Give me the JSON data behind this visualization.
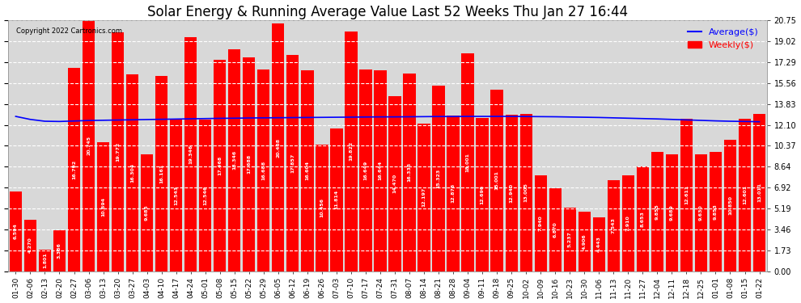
{
  "title": "Solar Energy & Running Average Value Last 52 Weeks Thu Jan 27 16:44",
  "copyright": "Copyright 2022 Cartronics.com",
  "categories": [
    "01-30",
    "02-06",
    "02-13",
    "02-20",
    "02-27",
    "03-06",
    "03-13",
    "03-20",
    "03-27",
    "04-03",
    "04-10",
    "04-17",
    "04-24",
    "05-01",
    "05-08",
    "05-15",
    "05-22",
    "05-29",
    "06-05",
    "06-12",
    "06-19",
    "06-26",
    "07-03",
    "07-10",
    "07-17",
    "07-24",
    "07-31",
    "08-07",
    "08-14",
    "08-21",
    "08-28",
    "09-04",
    "09-11",
    "09-18",
    "09-25",
    "10-02",
    "10-09",
    "10-16",
    "10-23",
    "10-30",
    "11-06",
    "11-13",
    "11-20",
    "11-27",
    "12-04",
    "12-11",
    "12-18",
    "12-25",
    "01-01",
    "01-08",
    "01-15",
    "01-22"
  ],
  "weekly_values": [
    6.594,
    4.27,
    1.801,
    3.386,
    16.792,
    20.745,
    10.694,
    19.772,
    16.304,
    9.685,
    16.161,
    12.543,
    19.346,
    12.546,
    17.468,
    18.346,
    17.688,
    16.688,
    20.468,
    17.857,
    16.604,
    10.456,
    11.814,
    19.822,
    16.649,
    16.644,
    14.47,
    16.335,
    12.197,
    15.323,
    12.876,
    18.001,
    12.696,
    15.001,
    12.94,
    13.005,
    7.94,
    6.87,
    5.237,
    4.906,
    4.443,
    7.543,
    7.91,
    8.653,
    9.855,
    9.689,
    12.611,
    9.63,
    9.853,
    10.85,
    12.601,
    13.011
  ],
  "avg_values": [
    12.8,
    12.55,
    12.4,
    12.38,
    12.42,
    12.46,
    12.48,
    12.5,
    12.52,
    12.54,
    12.56,
    12.58,
    12.6,
    12.62,
    12.64,
    12.65,
    12.67,
    12.68,
    12.69,
    12.7,
    12.71,
    12.72,
    12.73,
    12.74,
    12.75,
    12.76,
    12.76,
    12.77,
    12.78,
    12.79,
    12.79,
    12.8,
    12.8,
    12.8,
    12.8,
    12.79,
    12.78,
    12.77,
    12.75,
    12.73,
    12.71,
    12.68,
    12.65,
    12.62,
    12.59,
    12.55,
    12.51,
    12.47,
    12.43,
    12.4,
    12.38,
    12.36
  ],
  "bar_color": "#ff0000",
  "avg_line_color": "#0000ff",
  "weekly_line_color": "#ff0000",
  "bg_color": "#ffffff",
  "plot_bg_color": "#d8d8d8",
  "grid_color": "#ffffff",
  "title_fontsize": 12,
  "tick_fontsize": 6.5,
  "ytick_vals": [
    0.0,
    1.73,
    3.46,
    5.19,
    6.92,
    8.64,
    10.37,
    12.1,
    13.83,
    15.56,
    17.29,
    19.02,
    20.75
  ],
  "ymax": 20.75,
  "ymin": 0.0
}
